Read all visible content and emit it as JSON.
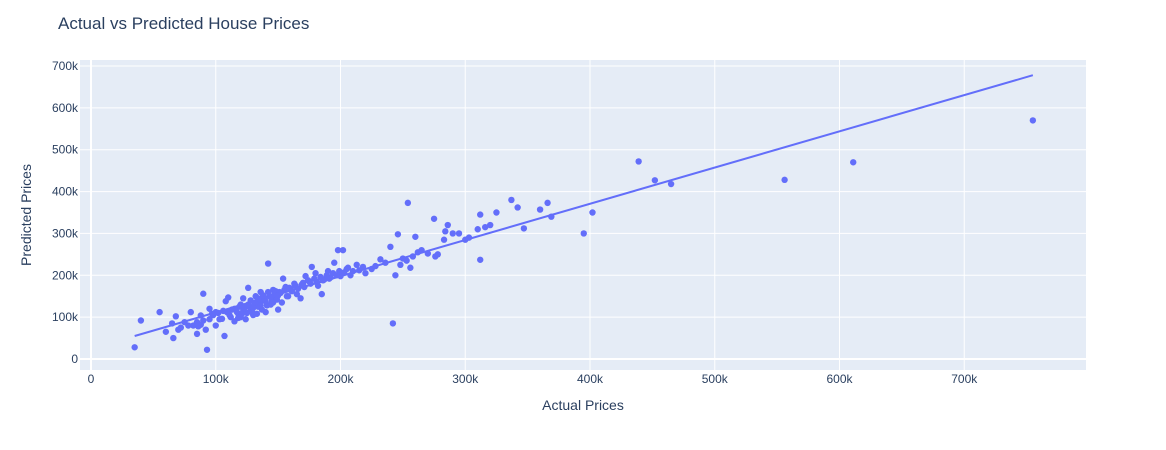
{
  "chart_data": {
    "type": "scatter",
    "title": "Actual vs Predicted House Prices",
    "xlabel": "Actual Prices",
    "ylabel": "Predicted Prices",
    "xlim": [
      0,
      800000
    ],
    "ylim": [
      -20000,
      710000
    ],
    "x_ticks": [
      {
        "value": 0,
        "label": "0"
      },
      {
        "value": 100000,
        "label": "100k"
      },
      {
        "value": 200000,
        "label": "200k"
      },
      {
        "value": 300000,
        "label": "300k"
      },
      {
        "value": 400000,
        "label": "400k"
      },
      {
        "value": 500000,
        "label": "500k"
      },
      {
        "value": 600000,
        "label": "600k"
      },
      {
        "value": 700000,
        "label": "700k"
      }
    ],
    "y_ticks": [
      {
        "value": 0,
        "label": "0"
      },
      {
        "value": 100000,
        "label": "100k"
      },
      {
        "value": 200000,
        "label": "200k"
      },
      {
        "value": 300000,
        "label": "300k"
      },
      {
        "value": 400000,
        "label": "400k"
      },
      {
        "value": 500000,
        "label": "500k"
      },
      {
        "value": 600000,
        "label": "600k"
      },
      {
        "value": 700000,
        "label": "700k"
      }
    ],
    "grid": true,
    "legend": "none",
    "colors": {
      "marker": "#636efa",
      "line": "#636efa",
      "plot_bg": "#e5ecf6",
      "grid": "#ffffff",
      "text": "#2a3f5f"
    },
    "series": [
      {
        "type": "scatter",
        "points": [
          [
            35000,
            28000
          ],
          [
            40000,
            92000
          ],
          [
            55000,
            112000
          ],
          [
            60000,
            65000
          ],
          [
            65000,
            85000
          ],
          [
            66000,
            50000
          ],
          [
            68000,
            102000
          ],
          [
            70000,
            70000
          ],
          [
            75000,
            88000
          ],
          [
            80000,
            112000
          ],
          [
            82000,
            80000
          ],
          [
            85000,
            60000
          ],
          [
            86000,
            78000
          ],
          [
            88000,
            104000
          ],
          [
            90000,
            156000
          ],
          [
            92000,
            70000
          ],
          [
            93000,
            22000
          ],
          [
            95000,
            120000
          ],
          [
            98000,
            105000
          ],
          [
            100000,
            80000
          ],
          [
            102000,
            110000
          ],
          [
            105000,
            96000
          ],
          [
            107000,
            55000
          ],
          [
            108000,
            138000
          ],
          [
            110000,
            147000
          ],
          [
            112000,
            100000
          ],
          [
            115000,
            90000
          ],
          [
            118000,
            108000
          ],
          [
            120000,
            130000
          ],
          [
            122000,
            145000
          ],
          [
            124000,
            95000
          ],
          [
            126000,
            170000
          ],
          [
            128000,
            118000
          ],
          [
            130000,
            105000
          ],
          [
            132000,
            150000
          ],
          [
            134000,
            125000
          ],
          [
            136000,
            160000
          ],
          [
            138000,
            140000
          ],
          [
            140000,
            112000
          ],
          [
            142000,
            228000
          ],
          [
            144000,
            130000
          ],
          [
            146000,
            165000
          ],
          [
            148000,
            145000
          ],
          [
            150000,
            118000
          ],
          [
            152000,
            158000
          ],
          [
            154000,
            192000
          ],
          [
            156000,
            172000
          ],
          [
            158000,
            150000
          ],
          [
            160000,
            168000
          ],
          [
            163000,
            180000
          ],
          [
            165000,
            155000
          ],
          [
            168000,
            145000
          ],
          [
            170000,
            182000
          ],
          [
            172000,
            198000
          ],
          [
            175000,
            185000
          ],
          [
            177000,
            220000
          ],
          [
            180000,
            205000
          ],
          [
            182000,
            175000
          ],
          [
            185000,
            155000
          ],
          [
            187000,
            190000
          ],
          [
            190000,
            210000
          ],
          [
            192000,
            195000
          ],
          [
            195000,
            230000
          ],
          [
            198000,
            260000
          ],
          [
            200000,
            198000
          ],
          [
            202000,
            260000
          ],
          [
            205000,
            215000
          ],
          [
            208000,
            200000
          ],
          [
            210000,
            210000
          ],
          [
            213000,
            225000
          ],
          [
            215000,
            212000
          ],
          [
            218000,
            220000
          ],
          [
            220000,
            205000
          ],
          [
            225000,
            215000
          ],
          [
            228000,
            222000
          ],
          [
            232000,
            238000
          ],
          [
            236000,
            230000
          ],
          [
            240000,
            268000
          ],
          [
            242000,
            85000
          ],
          [
            244000,
            200000
          ],
          [
            246000,
            298000
          ],
          [
            248000,
            225000
          ],
          [
            250000,
            240000
          ],
          [
            253000,
            235000
          ],
          [
            254000,
            373000
          ],
          [
            256000,
            218000
          ],
          [
            258000,
            245000
          ],
          [
            260000,
            292000
          ],
          [
            262000,
            255000
          ],
          [
            265000,
            260000
          ],
          [
            270000,
            252000
          ],
          [
            275000,
            335000
          ],
          [
            276000,
            245000
          ],
          [
            278000,
            250000
          ],
          [
            283000,
            285000
          ],
          [
            284000,
            305000
          ],
          [
            286000,
            320000
          ],
          [
            290000,
            300000
          ],
          [
            295000,
            300000
          ],
          [
            300000,
            285000
          ],
          [
            303000,
            290000
          ],
          [
            310000,
            310000
          ],
          [
            312000,
            345000
          ],
          [
            312000,
            237000
          ],
          [
            316000,
            315000
          ],
          [
            320000,
            320000
          ],
          [
            325000,
            350000
          ],
          [
            337000,
            380000
          ],
          [
            342000,
            362000
          ],
          [
            347000,
            312000
          ],
          [
            360000,
            357000
          ],
          [
            366000,
            373000
          ],
          [
            369000,
            340000
          ],
          [
            395000,
            300000
          ],
          [
            402000,
            350000
          ],
          [
            439000,
            472000
          ],
          [
            452000,
            427000
          ],
          [
            465000,
            418000
          ],
          [
            556000,
            428000
          ],
          [
            611000,
            470000
          ],
          [
            755000,
            570000
          ],
          [
            115000,
            120000
          ],
          [
            118000,
            98000
          ],
          [
            120000,
            100000
          ],
          [
            122000,
            115000
          ],
          [
            125000,
            110000
          ],
          [
            127000,
            125000
          ],
          [
            129000,
            112000
          ],
          [
            131000,
            132000
          ],
          [
            133000,
            108000
          ],
          [
            135000,
            140000
          ],
          [
            137000,
            118000
          ],
          [
            139000,
            145000
          ],
          [
            141000,
            128000
          ],
          [
            143000,
            150000
          ],
          [
            145000,
            138000
          ],
          [
            147000,
            155000
          ],
          [
            149000,
            142000
          ],
          [
            151000,
            160000
          ],
          [
            153000,
            135000
          ],
          [
            155000,
            165000
          ],
          [
            157000,
            150000
          ],
          [
            159000,
            170000
          ],
          [
            161000,
            162000
          ],
          [
            164000,
            175000
          ],
          [
            166000,
            168000
          ],
          [
            169000,
            178000
          ],
          [
            171000,
            172000
          ],
          [
            174000,
            188000
          ],
          [
            176000,
            180000
          ],
          [
            179000,
            192000
          ],
          [
            181000,
            185000
          ],
          [
            184000,
            196000
          ],
          [
            186000,
            188000
          ],
          [
            189000,
            200000
          ],
          [
            191000,
            192000
          ],
          [
            194000,
            205000
          ],
          [
            197000,
            200000
          ],
          [
            199000,
            210000
          ],
          [
            203000,
            207000
          ],
          [
            206000,
            218000
          ],
          [
            109000,
            112000
          ],
          [
            111000,
            105000
          ],
          [
            113000,
            118000
          ],
          [
            117000,
            112000
          ],
          [
            119000,
            125000
          ],
          [
            121000,
            108000
          ],
          [
            123000,
            122000
          ],
          [
            126000,
            130000
          ],
          [
            128000,
            140000
          ],
          [
            130000,
            122000
          ],
          [
            132000,
            135000
          ],
          [
            134000,
            145000
          ],
          [
            136000,
            128000
          ],
          [
            138000,
            152000
          ],
          [
            140000,
            138000
          ],
          [
            142000,
            160000
          ],
          [
            144000,
            148000
          ],
          [
            146000,
            135000
          ],
          [
            148000,
            162000
          ],
          [
            150000,
            152000
          ],
          [
            100000,
            112000
          ],
          [
            103000,
            95000
          ],
          [
            106000,
            115000
          ],
          [
            95000,
            95000
          ],
          [
            97000,
            108000
          ],
          [
            90000,
            92000
          ],
          [
            88000,
            82000
          ],
          [
            85000,
            88000
          ],
          [
            78000,
            80000
          ],
          [
            72000,
            75000
          ]
        ]
      },
      {
        "type": "line",
        "points": [
          [
            35000,
            55000
          ],
          [
            755000,
            678000
          ]
        ]
      }
    ]
  }
}
